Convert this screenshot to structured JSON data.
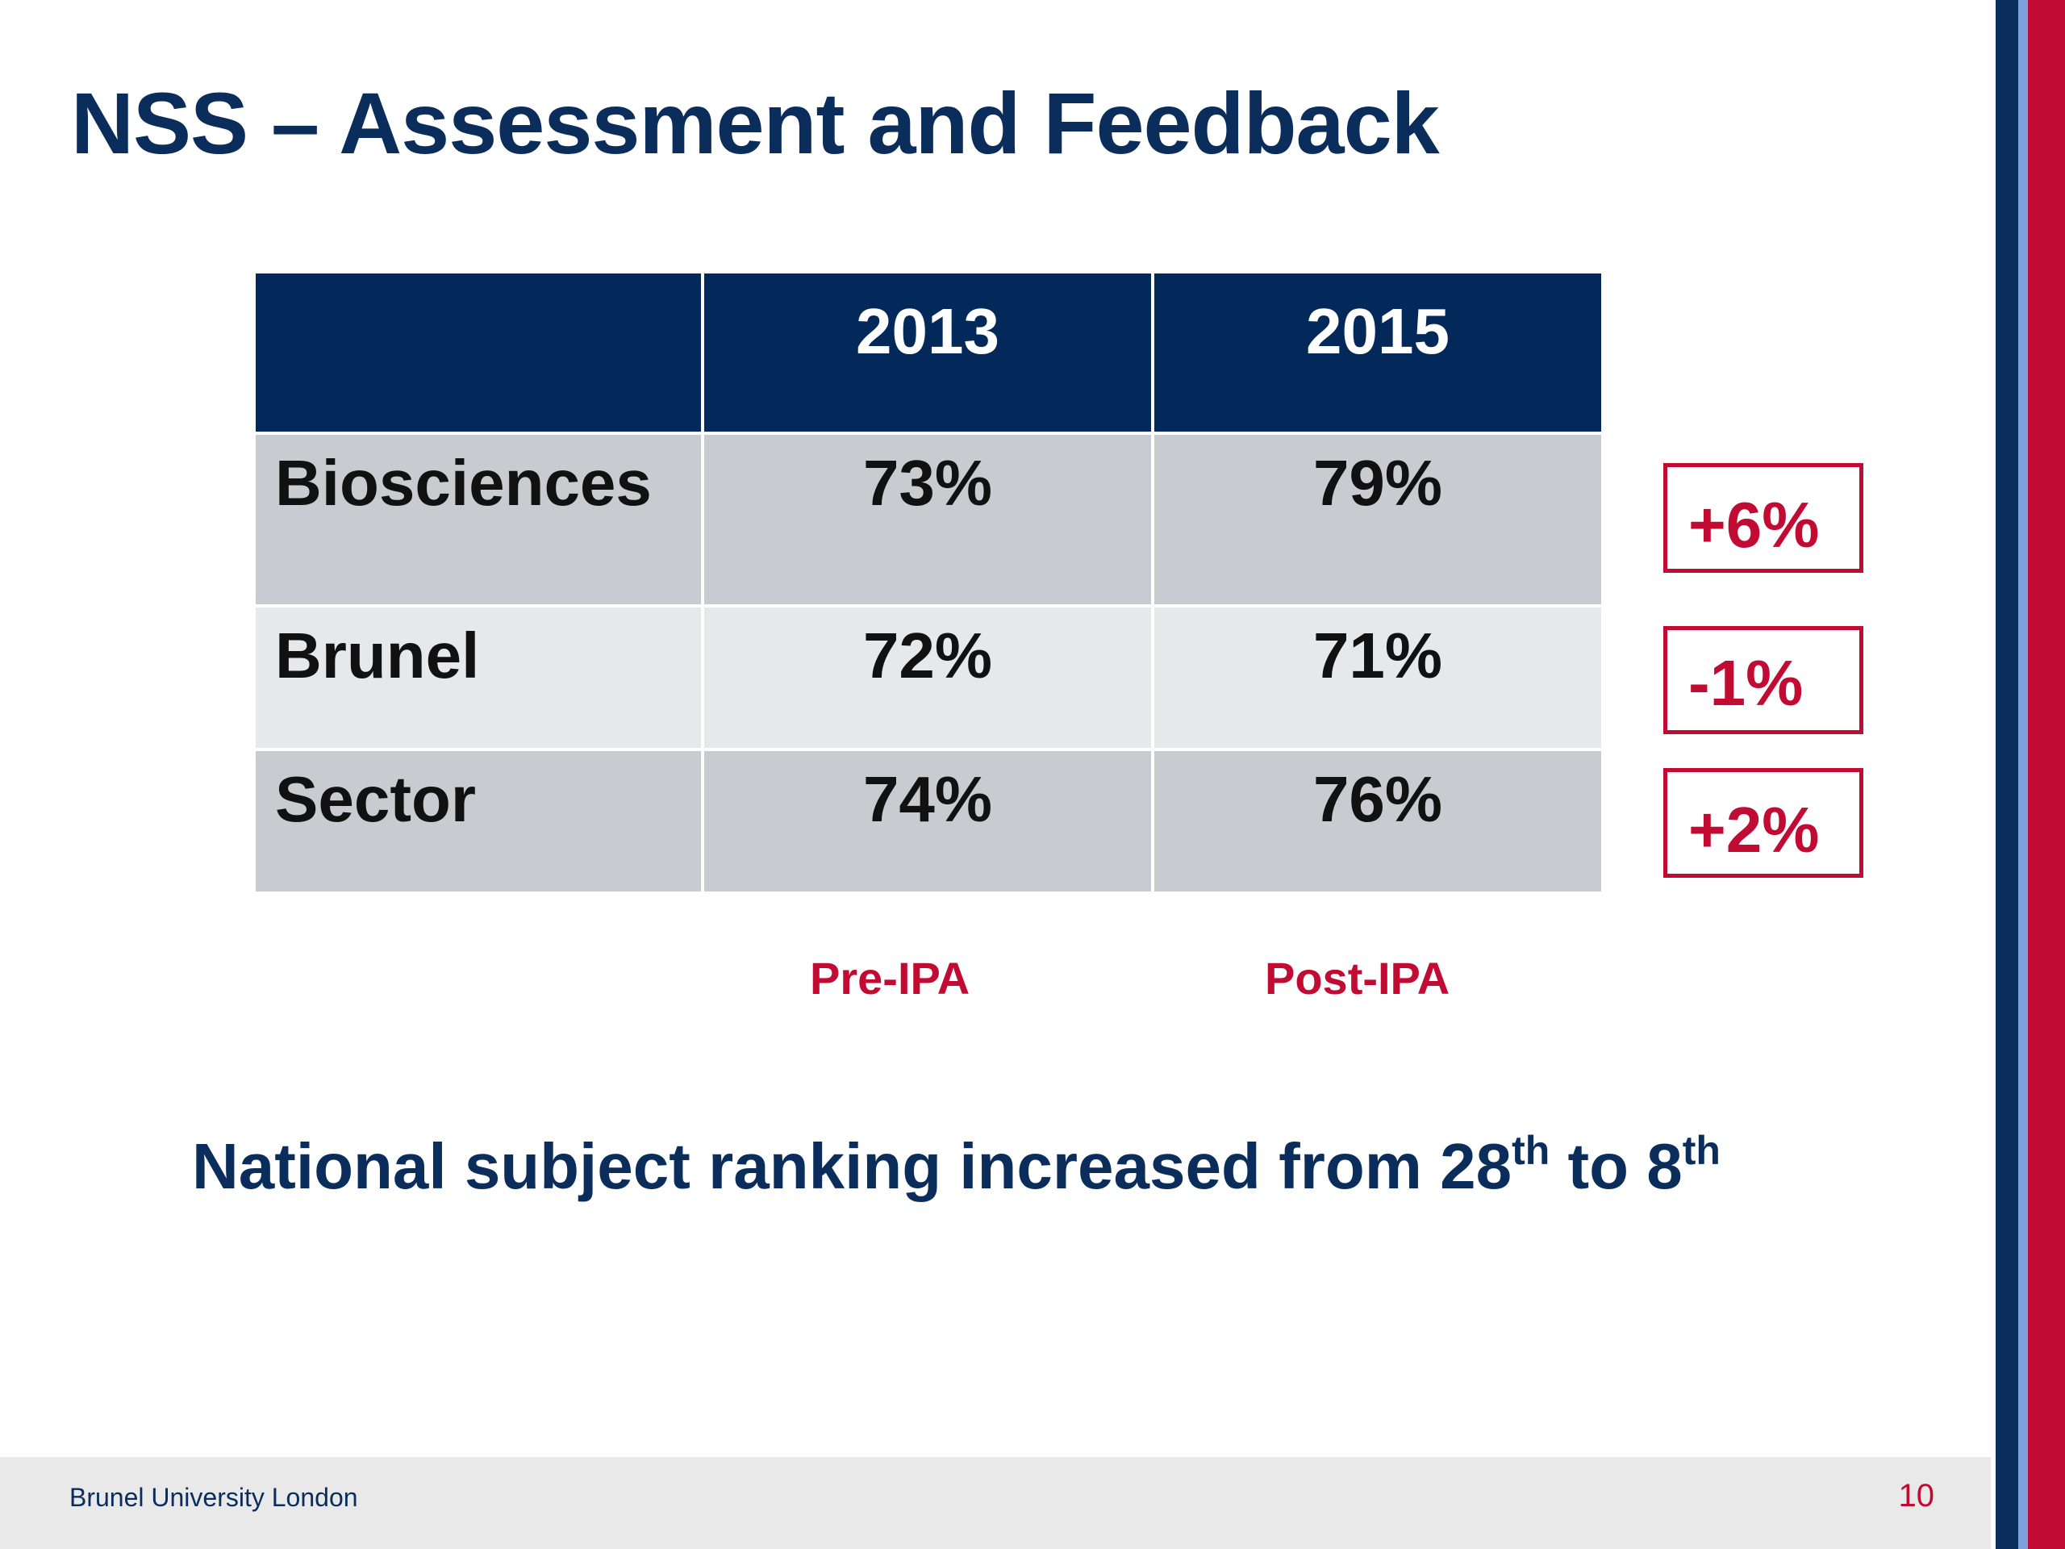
{
  "slide": {
    "title": "NSS – Assessment and Feedback",
    "table": {
      "headers": [
        "",
        "2013",
        "2015"
      ],
      "rows": [
        {
          "label": "Biosciences",
          "v2013": "73%",
          "v2015": "79%"
        },
        {
          "label": "Brunel",
          "v2013": "72%",
          "v2015": "71%"
        },
        {
          "label": "Sector",
          "v2013": "74%",
          "v2015": "76%"
        }
      ]
    },
    "changes": [
      "+6%",
      "-1%",
      "+2%"
    ],
    "ipa_labels": {
      "pre": "Pre-IPA",
      "post": "Post-IPA"
    },
    "ranking": {
      "text_before": "National subject ranking increased from 28",
      "sup1": "th",
      "text_middle": " to 8",
      "sup2": "th"
    },
    "footer": {
      "organization": "Brunel University London",
      "page_number": "10"
    }
  },
  "colors": {
    "navy": "#03295b",
    "brand_red": "#c10b32",
    "stripe_blue": "#7ea1dd",
    "row_dark": "#c9cbd0",
    "row_light": "#e7e8ea",
    "footer_bg": "#e9e9ea"
  }
}
